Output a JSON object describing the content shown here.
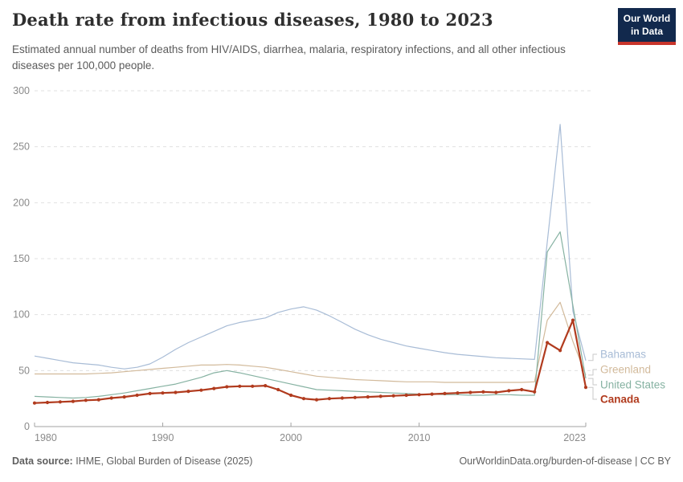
{
  "header": {
    "title": "Death rate from infectious diseases, 1980 to 2023",
    "subtitle": "Estimated annual number of deaths from HIV/AIDS, diarrhea, malaria, respiratory infections, and all other infectious diseases per 100,000 people.",
    "logo_line1": "Our World",
    "logo_line2": "in Data"
  },
  "footer": {
    "source_label": "Data source:",
    "source_value": " IHME, Global Burden of Disease (2025)",
    "credit": "OurWorldinData.org/burden-of-disease | CC BY"
  },
  "chart_data": {
    "type": "line",
    "title": "Death rate from infectious diseases, 1980 to 2023",
    "xlabel": "",
    "ylabel": "",
    "xlim": [
      1980,
      2023
    ],
    "ylim": [
      0,
      300
    ],
    "xticks": [
      1980,
      1990,
      2000,
      2010,
      2023
    ],
    "yticks": [
      0,
      50,
      100,
      150,
      200,
      250,
      300
    ],
    "grid": "dashed-horizontal",
    "legend_position": "right",
    "x": [
      1980,
      1981,
      1982,
      1983,
      1984,
      1985,
      1986,
      1987,
      1988,
      1989,
      1990,
      1991,
      1992,
      1993,
      1994,
      1995,
      1996,
      1997,
      1998,
      1999,
      2000,
      2001,
      2002,
      2003,
      2004,
      2005,
      2006,
      2007,
      2008,
      2009,
      2010,
      2011,
      2012,
      2013,
      2014,
      2015,
      2016,
      2017,
      2018,
      2019,
      2020,
      2021,
      2022,
      2023
    ],
    "series": [
      {
        "name": "Bahamas",
        "color": "#a8bcd6",
        "markers": false,
        "bold": false,
        "values": [
          63,
          61,
          59,
          57,
          56,
          55,
          53,
          51.5,
          53,
          56,
          62,
          69,
          75,
          80,
          85,
          90,
          93,
          95,
          97,
          102,
          105,
          107,
          104,
          99,
          93,
          87,
          82,
          78,
          75,
          72,
          70,
          68,
          66,
          64.5,
          63.5,
          62.5,
          61.5,
          61,
          60.5,
          60,
          165,
          270,
          103,
          59
        ]
      },
      {
        "name": "Greenland",
        "color": "#d2ba9b",
        "markers": false,
        "bold": false,
        "values": [
          47,
          47,
          47,
          47,
          47,
          47.5,
          48,
          49,
          50,
          51,
          52,
          53,
          54,
          55,
          55,
          55.5,
          55,
          54,
          53,
          51,
          49,
          47,
          45,
          44,
          43,
          42,
          41.5,
          41,
          40.5,
          40,
          40,
          40,
          39.5,
          39.5,
          39.5,
          39.5,
          39.5,
          39.5,
          39.5,
          40,
          95,
          111,
          76,
          46
        ]
      },
      {
        "name": "United States",
        "color": "#86b2a2",
        "markers": false,
        "bold": false,
        "values": [
          27,
          26.5,
          26,
          25.5,
          26,
          27,
          28.5,
          30,
          32,
          34,
          36,
          38,
          41,
          44,
          48,
          50,
          48,
          45.5,
          43,
          40.5,
          38,
          35.5,
          33,
          32.5,
          32,
          31.5,
          31,
          30.5,
          30,
          29.5,
          29,
          29,
          28.5,
          28.5,
          28,
          28,
          28.5,
          28.5,
          28,
          28,
          156,
          174,
          108,
          43
        ]
      },
      {
        "name": "Canada",
        "color": "#b13b1e",
        "markers": true,
        "bold": true,
        "values": [
          21,
          21.5,
          22,
          22.5,
          23.5,
          24,
          25.5,
          26.5,
          28,
          29.5,
          30,
          30.5,
          31.5,
          32.5,
          34,
          35.5,
          36,
          36,
          36.5,
          33,
          28,
          25,
          24,
          25,
          25.5,
          26,
          26.5,
          27,
          27.5,
          28,
          28.5,
          29,
          29.5,
          30,
          30.5,
          31,
          30.5,
          32,
          33,
          31,
          75,
          68,
          95,
          35
        ]
      }
    ]
  }
}
